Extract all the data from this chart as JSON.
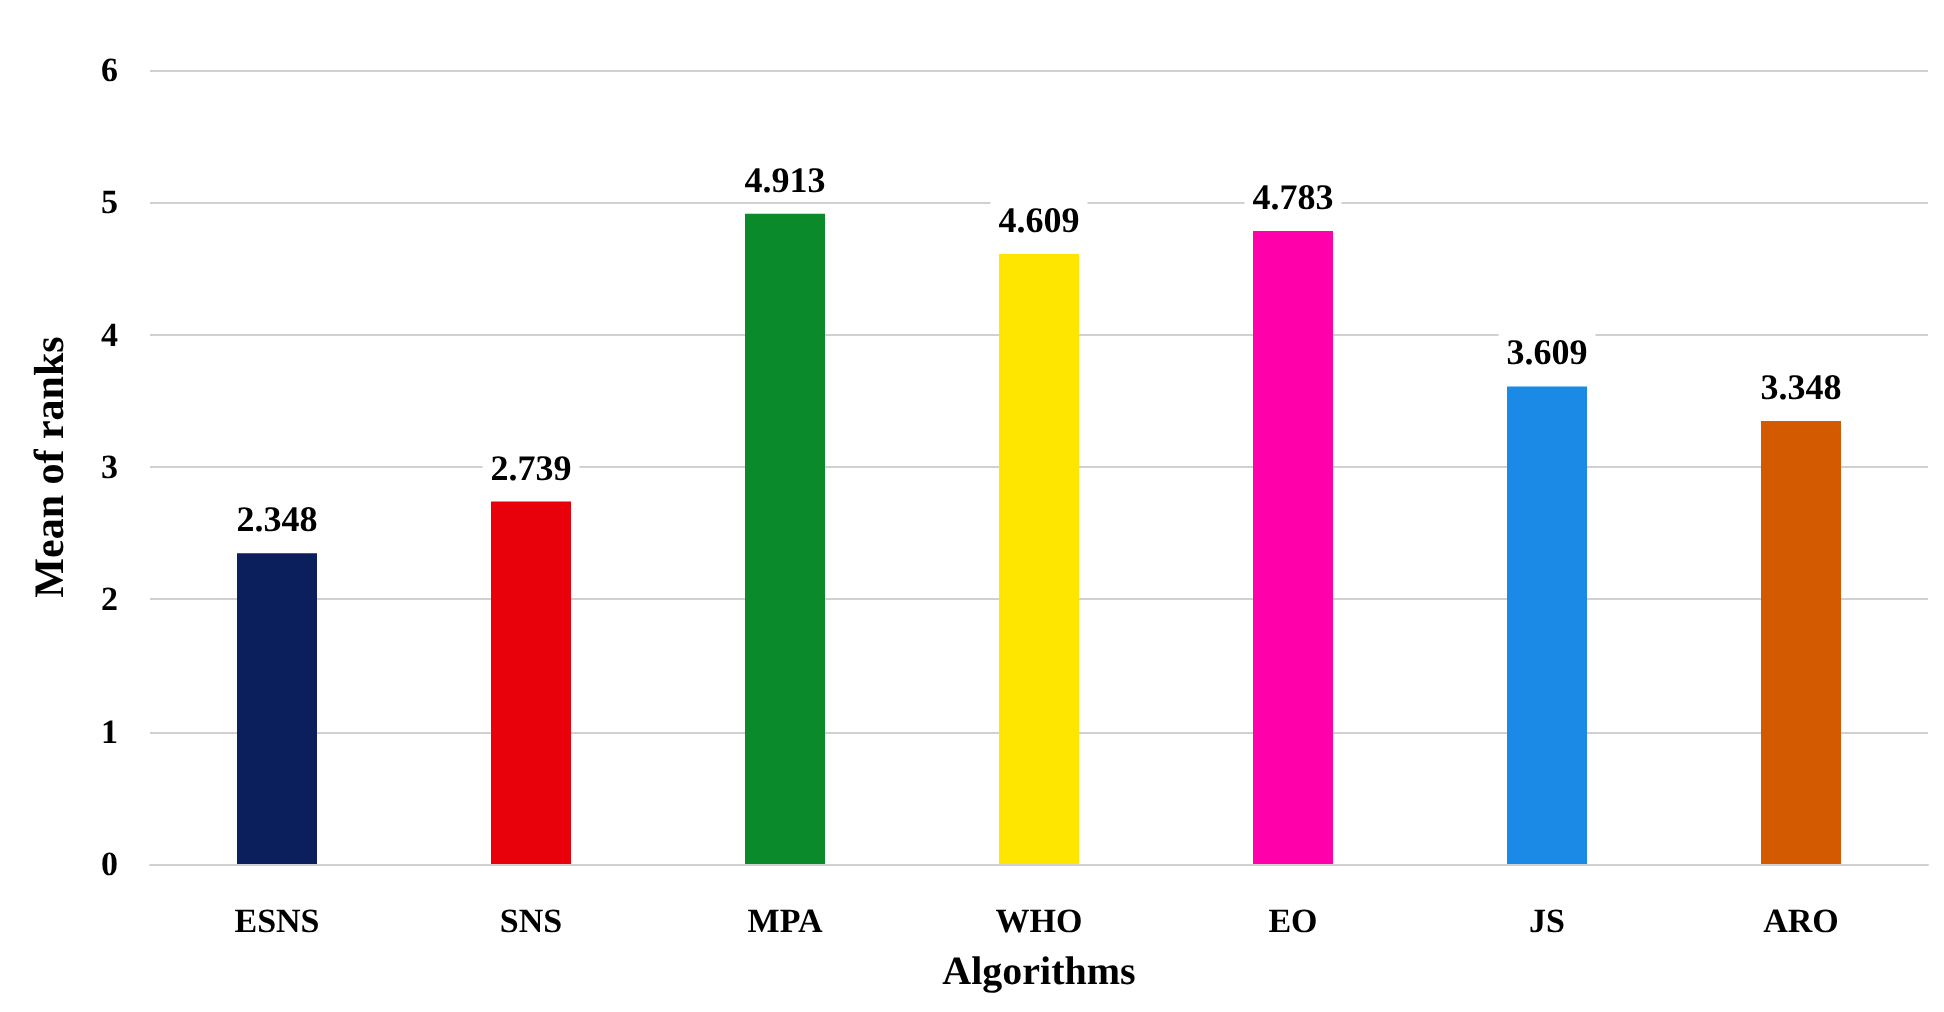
{
  "chart_data": {
    "type": "bar",
    "xlabel": "Algorithms",
    "ylabel": "Mean of ranks",
    "categories": [
      "ESNS",
      "SNS",
      "MPA",
      "WHO",
      "EO",
      "JS",
      "ARO"
    ],
    "values": [
      2.348,
      2.739,
      4.913,
      4.609,
      4.783,
      3.609,
      3.348
    ],
    "colors": [
      "#0a1f5c",
      "#e8000b",
      "#0a8a2a",
      "#ffe600",
      "#ff00aa",
      "#1a8ae6",
      "#d45a00"
    ],
    "ylim": [
      0,
      6
    ],
    "yticks": [
      0,
      1,
      2,
      3,
      4,
      5,
      6
    ],
    "grid": "y",
    "data_labels": true
  }
}
